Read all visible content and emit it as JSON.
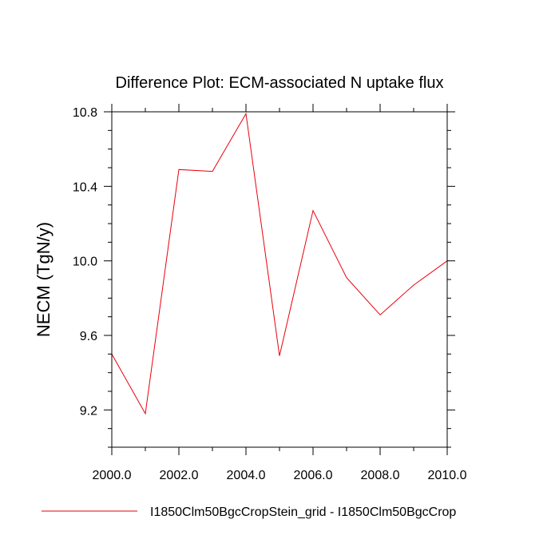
{
  "chart_data": {
    "type": "line",
    "title": "Difference Plot: ECM-associated N uptake flux",
    "xlabel": "",
    "ylabel": "NECM  (TgN/y)",
    "xlim": [
      2000,
      2010
    ],
    "ylim": [
      9.0,
      10.8
    ],
    "x_ticks": [
      2000,
      2002,
      2004,
      2006,
      2008,
      2010
    ],
    "x_tick_labels": [
      "2000.0",
      "2002.0",
      "2004.0",
      "2006.0",
      "2008.0",
      "2010.0"
    ],
    "y_ticks": [
      9.2,
      9.6,
      10.0,
      10.4,
      10.8
    ],
    "y_tick_labels": [
      "9.2",
      "9.6",
      "10.0",
      "10.4",
      "10.8"
    ],
    "grid": false,
    "legend_position": "bottom",
    "x": [
      2000,
      2001,
      2002,
      2003,
      2004,
      2005,
      2006,
      2007,
      2008,
      2009,
      2010
    ],
    "series": [
      {
        "name": "I1850Clm50BgcCropStein_grid - I1850Clm50BgcCrop",
        "color": "#e8000b",
        "values": [
          9.5,
          9.18,
          10.49,
          10.48,
          10.79,
          9.49,
          10.27,
          9.91,
          9.71,
          9.87,
          10.0
        ]
      }
    ]
  }
}
